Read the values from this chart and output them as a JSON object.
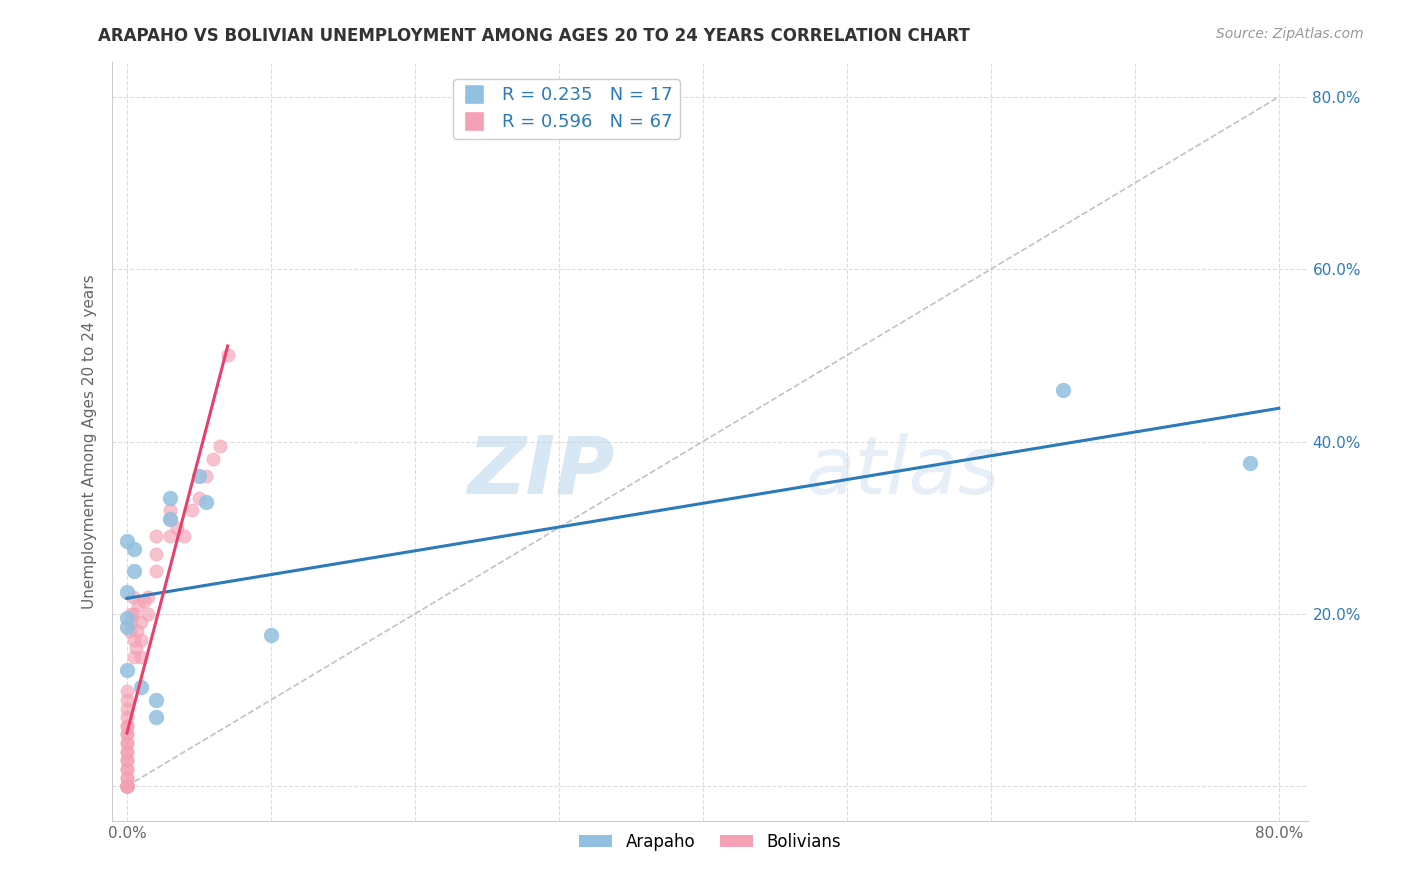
{
  "title": "ARAPAHO VS BOLIVIAN UNEMPLOYMENT AMONG AGES 20 TO 24 YEARS CORRELATION CHART",
  "source": "Source: ZipAtlas.com",
  "ylabel": "Unemployment Among Ages 20 to 24 years",
  "xlim": [
    -0.01,
    0.82
  ],
  "ylim": [
    -0.04,
    0.84
  ],
  "xticks": [
    0.0,
    0.1,
    0.2,
    0.3,
    0.4,
    0.5,
    0.6,
    0.7,
    0.8
  ],
  "yticks": [
    0.0,
    0.2,
    0.4,
    0.6,
    0.8
  ],
  "arapaho_R": 0.235,
  "arapaho_N": 17,
  "bolivian_R": 0.596,
  "bolivian_N": 67,
  "arapaho_color": "#92C0E0",
  "bolivian_color": "#F4A0B5",
  "arapaho_line_color": "#2B7BBA",
  "bolivian_line_color": "#E8406A",
  "diagonal_color": "#BBBBBB",
  "legend_text_color": "#2B7BBA",
  "right_tick_color": "#2B7BBA",
  "arapaho_x": [
    0.0,
    0.0,
    0.0,
    0.0,
    0.0,
    0.005,
    0.005,
    0.01,
    0.02,
    0.02,
    0.03,
    0.03,
    0.05,
    0.055,
    0.1,
    0.65,
    0.78
  ],
  "arapaho_y": [
    0.135,
    0.185,
    0.195,
    0.225,
    0.285,
    0.25,
    0.275,
    0.115,
    0.08,
    0.1,
    0.31,
    0.335,
    0.36,
    0.33,
    0.175,
    0.46,
    0.375
  ],
  "bolivian_x": [
    0.0,
    0.0,
    0.0,
    0.0,
    0.0,
    0.0,
    0.0,
    0.0,
    0.0,
    0.0,
    0.0,
    0.0,
    0.0,
    0.0,
    0.0,
    0.0,
    0.0,
    0.0,
    0.0,
    0.0,
    0.0,
    0.0,
    0.0,
    0.0,
    0.0,
    0.0,
    0.0,
    0.0,
    0.0,
    0.0,
    0.0,
    0.0,
    0.0,
    0.0,
    0.0,
    0.0,
    0.0,
    0.002,
    0.003,
    0.003,
    0.004,
    0.005,
    0.005,
    0.005,
    0.006,
    0.007,
    0.008,
    0.01,
    0.01,
    0.01,
    0.012,
    0.015,
    0.015,
    0.02,
    0.02,
    0.02,
    0.03,
    0.03,
    0.03,
    0.035,
    0.04,
    0.045,
    0.05,
    0.055,
    0.06,
    0.065,
    0.07
  ],
  "bolivian_y": [
    0.0,
    0.0,
    0.0,
    0.0,
    0.0,
    0.0,
    0.0,
    0.0,
    0.0,
    0.0,
    0.0,
    0.0,
    0.0,
    0.0,
    0.0,
    0.0,
    0.0,
    0.0,
    0.0,
    0.01,
    0.01,
    0.02,
    0.02,
    0.03,
    0.03,
    0.04,
    0.04,
    0.05,
    0.05,
    0.06,
    0.06,
    0.07,
    0.07,
    0.08,
    0.09,
    0.1,
    0.11,
    0.18,
    0.19,
    0.2,
    0.22,
    0.15,
    0.17,
    0.2,
    0.16,
    0.18,
    0.21,
    0.15,
    0.17,
    0.19,
    0.215,
    0.2,
    0.22,
    0.25,
    0.27,
    0.29,
    0.29,
    0.31,
    0.32,
    0.3,
    0.29,
    0.32,
    0.335,
    0.36,
    0.38,
    0.395,
    0.5
  ],
  "watermark_zip": "ZIP",
  "watermark_atlas": "atlas",
  "background_color": "#FFFFFF",
  "grid_color": "#DDDDDD"
}
